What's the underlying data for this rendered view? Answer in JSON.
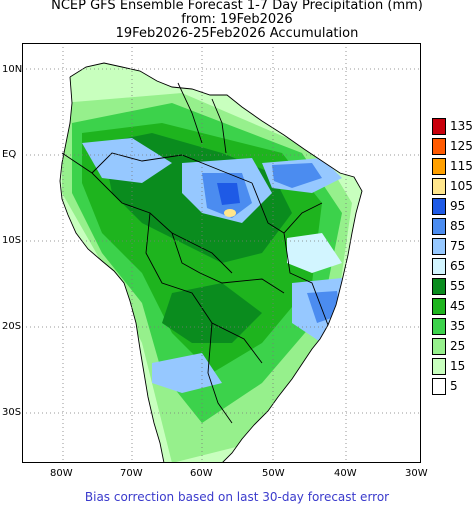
{
  "header": {
    "line1": "NCEP GFS Ensemble Forecast 1-7 Day Precipitation (mm)",
    "line2": "from: 19Feb2026",
    "line3": "19Feb2026-25Feb2026 Accumulation"
  },
  "axes": {
    "lat_labels": [
      "10N",
      "EQ",
      "10S",
      "20S",
      "30S"
    ],
    "lon_labels": [
      "80W",
      "70W",
      "60W",
      "50W",
      "40W",
      "30W"
    ]
  },
  "legend": {
    "items": [
      {
        "label": "135",
        "color": "#c8000c"
      },
      {
        "label": "125",
        "color": "#ff5a00"
      },
      {
        "label": "115",
        "color": "#ffa000"
      },
      {
        "label": "105",
        "color": "#ffe68c"
      },
      {
        "label": "95",
        "color": "#1e5ae6"
      },
      {
        "label": "85",
        "color": "#4b8cf0"
      },
      {
        "label": "75",
        "color": "#96c8ff"
      },
      {
        "label": "65",
        "color": "#d2f5ff"
      },
      {
        "label": "55",
        "color": "#0a8c1e"
      },
      {
        "label": "45",
        "color": "#1eb41e"
      },
      {
        "label": "35",
        "color": "#3cd24b"
      },
      {
        "label": "25",
        "color": "#96f08c"
      },
      {
        "label": "15",
        "color": "#c8ffbe"
      },
      {
        "label": "5",
        "color": "#ffffff"
      }
    ]
  },
  "footer": {
    "note": "Bias correction based on last 30-day forecast error"
  }
}
